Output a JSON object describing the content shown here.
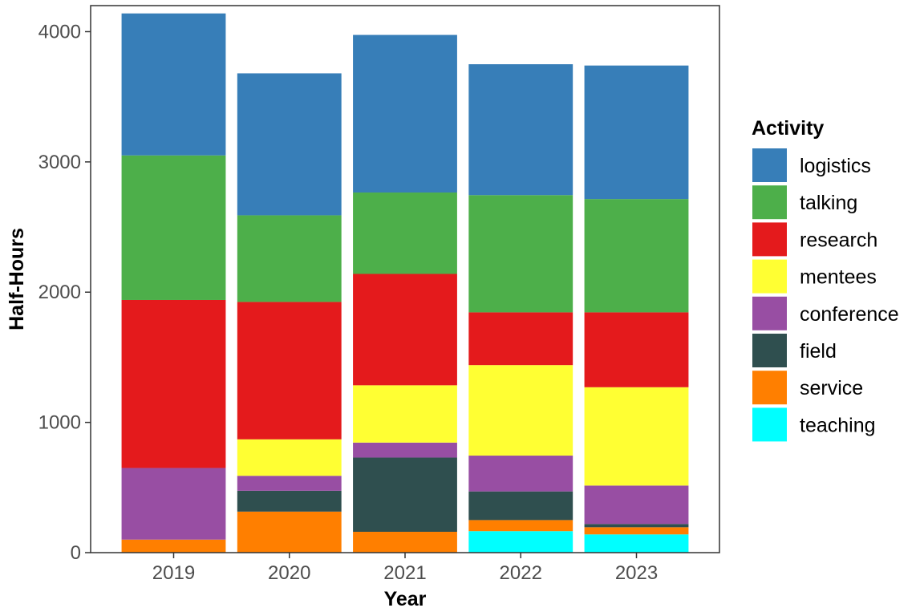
{
  "chart_data": {
    "type": "bar",
    "stacked": true,
    "title": "",
    "xlabel": "Year",
    "ylabel": "Half-Hours",
    "categories": [
      "2019",
      "2020",
      "2021",
      "2022",
      "2023"
    ],
    "ylim": [
      0,
      4200
    ],
    "yticks": [
      0,
      1000,
      2000,
      3000,
      4000
    ],
    "grid": false,
    "legend_title": "Activity",
    "legend_position": "right",
    "series": [
      {
        "name": "teaching",
        "color": "#00FFFF",
        "values": [
          0,
          0,
          0,
          165,
          140
        ]
      },
      {
        "name": "service",
        "color": "#FF7F00",
        "values": [
          100,
          315,
          160,
          85,
          55
        ]
      },
      {
        "name": "field",
        "color": "#2F4F4F",
        "values": [
          0,
          160,
          570,
          220,
          25
        ]
      },
      {
        "name": "conference",
        "color": "#984EA3",
        "values": [
          550,
          115,
          115,
          275,
          295
        ]
      },
      {
        "name": "mentees",
        "color": "#FFFF33",
        "values": [
          0,
          280,
          440,
          695,
          755
        ]
      },
      {
        "name": "research",
        "color": "#E41A1C",
        "values": [
          1290,
          1055,
          855,
          405,
          575
        ]
      },
      {
        "name": "talking",
        "color": "#4DAF4A",
        "values": [
          1110,
          665,
          625,
          900,
          870
        ]
      },
      {
        "name": "logistics",
        "color": "#377EB8",
        "values": [
          1090,
          1090,
          1210,
          1005,
          1025
        ]
      }
    ]
  }
}
